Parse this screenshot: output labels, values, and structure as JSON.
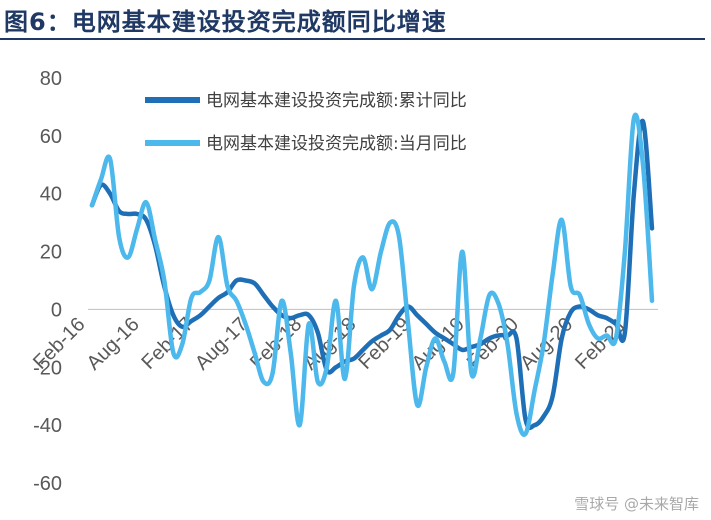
{
  "figure": {
    "title": "图6：电网基本建设投资完成额同比增速",
    "watermark": "雪球号 @未来智库"
  },
  "chart_data": {
    "type": "line",
    "title": "图6：电网基本建设投资完成额同比增速",
    "xlabel": "",
    "ylabel": "",
    "ylim": [
      -60,
      80
    ],
    "yticks": [
      80,
      60,
      40,
      20,
      0,
      -20,
      -40,
      -60
    ],
    "x_tick_labels": [
      "Feb-16",
      "Aug-16",
      "Feb-17",
      "Aug-17",
      "Feb-18",
      "Aug-18",
      "Feb-19",
      "Aug-19",
      "Feb-20",
      "Aug-20",
      "Feb-21"
    ],
    "x_tick_positions": [
      0,
      6,
      12,
      18,
      24,
      30,
      36,
      42,
      48,
      54,
      60
    ],
    "grid": false,
    "legend_position": "top-center",
    "series": [
      {
        "name": "电网基本建设投资完成额:累计同比",
        "color": "#1f6fb7",
        "x": [
          0,
          1,
          2,
          3,
          4,
          5,
          6,
          7,
          8,
          9,
          10,
          11,
          12,
          13,
          14,
          15,
          16,
          17,
          18,
          19,
          20,
          21,
          22,
          23,
          24,
          25,
          26,
          27,
          28,
          29,
          30,
          31,
          32,
          33,
          34,
          35,
          36,
          37,
          38,
          39,
          40,
          41,
          42,
          43,
          44,
          45,
          46,
          47,
          48,
          49,
          50,
          51,
          52,
          53,
          54,
          55,
          56,
          57,
          58,
          59,
          60,
          61,
          62
        ],
        "values": [
          36,
          43,
          40,
          34,
          33,
          33,
          31,
          22,
          8,
          -2,
          -6,
          -4,
          -2,
          1,
          4,
          6,
          10,
          10,
          9,
          5,
          1,
          -2,
          -3,
          -2,
          -2,
          -8,
          -21,
          -20,
          -18,
          -17,
          -14,
          -11,
          -9,
          -7,
          -2,
          1,
          -2,
          -5,
          -8,
          -10,
          -12,
          -14,
          -13,
          -12,
          -10,
          -9,
          -9,
          -10,
          -38,
          -40,
          -37,
          -30,
          -10,
          -1,
          1,
          0,
          -2,
          -3,
          -5,
          -8,
          40,
          65,
          28
        ]
      },
      {
        "name": "电网基本建设投资完成额:当月同比",
        "color": "#4db8ec",
        "x": [
          0,
          1,
          2,
          3,
          4,
          5,
          6,
          7,
          8,
          9,
          10,
          11,
          12,
          13,
          14,
          15,
          16,
          17,
          18,
          19,
          20,
          21,
          22,
          23,
          24,
          25,
          26,
          27,
          28,
          29,
          30,
          31,
          32,
          33,
          34,
          35,
          36,
          37,
          38,
          39,
          40,
          41,
          42,
          43,
          44,
          45,
          46,
          47,
          48,
          49,
          50,
          51,
          52,
          53,
          54,
          55,
          56,
          57,
          58,
          59,
          60,
          61,
          62
        ],
        "values": [
          36,
          45,
          52,
          25,
          18,
          28,
          37,
          24,
          10,
          -15,
          -12,
          4,
          6,
          10,
          25,
          8,
          3,
          -5,
          -15,
          -25,
          -22,
          3,
          -15,
          -40,
          -5,
          -25,
          -20,
          3,
          -24,
          8,
          18,
          7,
          20,
          30,
          25,
          -5,
          -33,
          -20,
          -10,
          -18,
          -22,
          20,
          -22,
          -10,
          5,
          2,
          -12,
          -36,
          -43,
          -28,
          -12,
          12,
          31,
          8,
          5,
          -5,
          -10,
          -9,
          -10,
          20,
          66,
          50,
          3
        ]
      }
    ]
  }
}
